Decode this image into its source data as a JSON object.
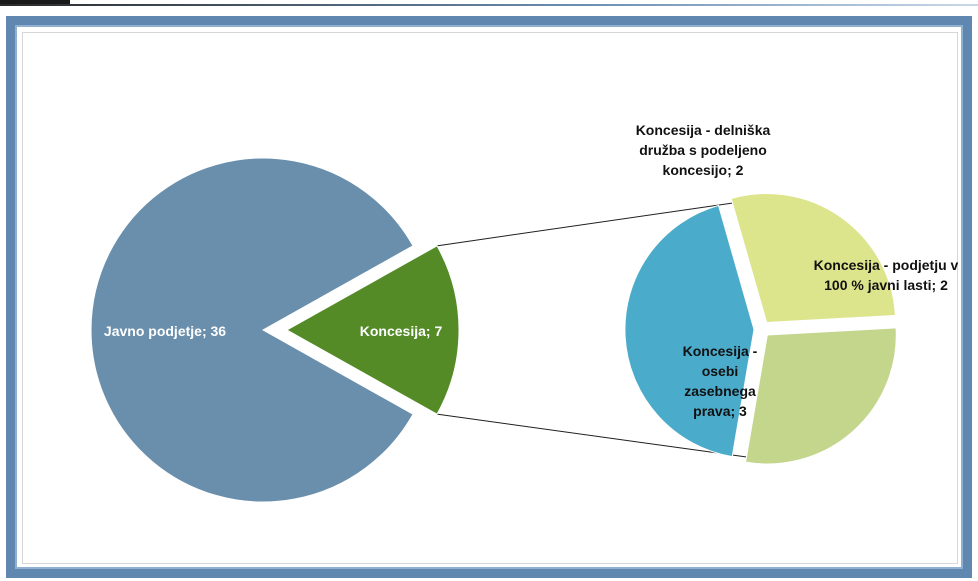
{
  "chart_data": [
    {
      "type": "pie",
      "labels": [
        "Javno podjetje; 36",
        "Koncesija; 7"
      ],
      "values": [
        36,
        7
      ],
      "categories": [
        "Javno podjetje",
        "Koncesija"
      ],
      "colors": [
        "#6a8fac",
        "#548b27"
      ],
      "exploded": "Koncesija"
    },
    {
      "type": "pie",
      "labels": [
        [
          "Koncesija - delniška",
          "družba s podeljeno",
          "koncesijo; 2"
        ],
        [
          "Koncesija -  podjetju v",
          "100 % javni lasti; 2"
        ],
        [
          "Koncesija -",
          "osebi",
          "zasebnega",
          "prava; 3"
        ]
      ],
      "categories": [
        "Koncesija - delniška družba s podeljeno koncesijo",
        "Koncesija - podjetju v 100 % javni lasti",
        "Koncesija - osebi zasebnega prava"
      ],
      "values": [
        2,
        2,
        3
      ],
      "colors": [
        "#dde58c",
        "#c3d68c",
        "#4babcb"
      ],
      "exploded": "all"
    }
  ]
}
